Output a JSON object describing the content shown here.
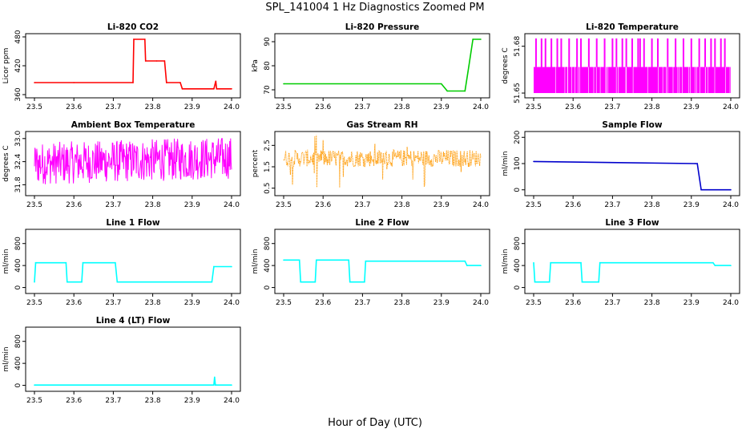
{
  "figure": {
    "title": "SPL_141004  1 Hz Diagnostics Zoomed PM",
    "xlabel": "Hour of Day (UTC)"
  },
  "chart_data": [
    {
      "type": "line",
      "title": "Li-820 CO2",
      "ylabel": "Licor ppm",
      "color": "#ff0000",
      "xlim": [
        23.5,
        24.0
      ],
      "ylim": [
        360,
        480
      ],
      "xticks": [
        "23.5",
        "23.6",
        "23.7",
        "23.8",
        "23.9",
        "24.0"
      ],
      "yticks": [
        "360",
        "420",
        "480"
      ],
      "x": [
        23.5,
        23.6,
        23.75,
        23.752,
        23.78,
        23.782,
        23.81,
        23.83,
        23.835,
        23.87,
        23.875,
        23.955,
        23.96,
        23.962,
        23.965,
        23.97,
        24.0
      ],
      "y": [
        385,
        385,
        385,
        475,
        475,
        430,
        430,
        430,
        385,
        385,
        372,
        372,
        388,
        372,
        372,
        372,
        372
      ]
    },
    {
      "type": "line",
      "title": "Li-820 Pressure",
      "ylabel": "kPa",
      "color": "#00cc00",
      "xlim": [
        23.5,
        24.0
      ],
      "ylim": [
        68,
        92
      ],
      "xticks": [
        "23.5",
        "23.6",
        "23.7",
        "23.8",
        "23.9",
        "24.0"
      ],
      "yticks": [
        "70",
        "80",
        "90"
      ],
      "x": [
        23.5,
        23.9,
        23.915,
        23.96,
        23.97,
        23.98,
        24.0
      ],
      "y": [
        72.5,
        72.5,
        69.5,
        69.5,
        80,
        91,
        91
      ]
    },
    {
      "type": "line",
      "title": "Li-820 Temperature",
      "ylabel": "degrees C",
      "color": "#ff00ff",
      "xlim": [
        23.5,
        24.0
      ],
      "ylim": [
        51.649,
        51.686
      ],
      "xticks": [
        "23.5",
        "23.6",
        "23.7",
        "23.8",
        "23.9",
        "24.0"
      ],
      "yticks": [
        "51.65",
        "51.68"
      ],
      "ytick_values": [
        51.65,
        51.68
      ],
      "band_low": 51.65,
      "band_high": 51.6667,
      "spike_high": 51.685,
      "spikes_x": [
        23.506,
        23.52,
        23.53,
        23.545,
        23.56,
        23.57,
        23.59,
        23.61,
        23.62,
        23.64,
        23.66,
        23.68,
        23.7,
        23.71,
        23.725,
        23.735,
        23.75,
        23.765,
        23.77,
        23.78,
        23.8,
        23.815,
        23.84,
        23.86,
        23.88,
        23.9,
        23.92,
        23.935,
        23.95,
        23.96,
        23.975,
        23.985
      ]
    },
    {
      "type": "line",
      "title": "Ambient Box Temperature",
      "ylabel": "degrees C",
      "color": "#ff00ff",
      "xlim": [
        23.5,
        24.0
      ],
      "ylim": [
        31.6,
        33.1
      ],
      "xticks": [
        "23.5",
        "23.6",
        "23.7",
        "23.8",
        "23.9",
        "24.0"
      ],
      "yticks": [
        "31.8",
        "32.4",
        "33.0"
      ],
      "ytick_values": [
        31.8,
        32.4,
        33.0
      ],
      "trend_start": [
        31.8,
        32.9
      ],
      "trend_end": [
        31.95,
        33.05
      ]
    },
    {
      "type": "line",
      "title": "Gas Stream RH",
      "ylabel": "percent",
      "color": "#ff9900",
      "xlim": [
        23.5,
        24.0
      ],
      "ylim": [
        0.3,
        3.0
      ],
      "xticks": [
        "23.5",
        "23.6",
        "23.7",
        "23.8",
        "23.9",
        "24.0"
      ],
      "yticks": [
        "0.5",
        "1.5",
        "2.5"
      ],
      "ytick_values": [
        0.5,
        1.5,
        2.5
      ],
      "band": [
        1.5,
        2.3
      ]
    },
    {
      "type": "line",
      "title": "Sample Flow",
      "ylabel": "ml/min",
      "color": "#0000cc",
      "xlim": [
        23.5,
        24.0
      ],
      "ylim": [
        -10,
        210
      ],
      "xticks": [
        "23.5",
        "23.6",
        "23.7",
        "23.8",
        "23.9",
        "24.0"
      ],
      "yticks": [
        "0",
        "100",
        "200"
      ],
      "x": [
        23.5,
        23.91,
        23.915,
        23.925,
        24.0
      ],
      "y": [
        108,
        100,
        100,
        0,
        0
      ]
    },
    {
      "type": "line",
      "title": "Line 1 Flow",
      "ylabel": "ml/min",
      "color": "#00ffff",
      "xlim": [
        23.5,
        24.0
      ],
      "ylim": [
        -50,
        1000
      ],
      "xticks": [
        "23.5",
        "23.6",
        "23.7",
        "23.8",
        "23.9",
        "24.0"
      ],
      "yticks": [
        "0",
        "400",
        "800"
      ],
      "x": [
        23.5,
        23.503,
        23.58,
        23.583,
        23.62,
        23.623,
        23.705,
        23.71,
        23.95,
        23.955,
        24.0
      ],
      "y": [
        100,
        450,
        450,
        100,
        100,
        450,
        450,
        100,
        100,
        380,
        380
      ]
    },
    {
      "type": "line",
      "title": "Line 2 Flow",
      "ylabel": "ml/min",
      "color": "#00ffff",
      "xlim": [
        23.5,
        24.0
      ],
      "ylim": [
        -50,
        1000
      ],
      "xticks": [
        "23.5",
        "23.6",
        "23.7",
        "23.8",
        "23.9",
        "24.0"
      ],
      "yticks": [
        "0",
        "400",
        "800"
      ],
      "x": [
        23.5,
        23.54,
        23.543,
        23.58,
        23.583,
        23.665,
        23.668,
        23.705,
        23.708,
        23.96,
        23.965,
        24.0
      ],
      "y": [
        500,
        500,
        100,
        100,
        500,
        500,
        100,
        100,
        480,
        480,
        400,
        400
      ]
    },
    {
      "type": "line",
      "title": "Line 3 Flow",
      "ylabel": "ml/min",
      "color": "#00ffff",
      "xlim": [
        23.5,
        24.0
      ],
      "ylim": [
        -50,
        1000
      ],
      "xticks": [
        "23.5",
        "23.6",
        "23.7",
        "23.8",
        "23.9",
        "24.0"
      ],
      "yticks": [
        "0",
        "400",
        "800"
      ],
      "x": [
        23.5,
        23.503,
        23.54,
        23.543,
        23.62,
        23.623,
        23.665,
        23.668,
        23.955,
        23.96,
        24.0
      ],
      "y": [
        450,
        100,
        100,
        450,
        450,
        100,
        100,
        450,
        450,
        400,
        400
      ]
    },
    {
      "type": "line",
      "title": "Line 4 (LT) Flow",
      "ylabel": "ml/min",
      "color": "#00ffff",
      "xlim": [
        23.5,
        24.0
      ],
      "ylim": [
        -50,
        1000
      ],
      "xticks": [
        "23.5",
        "23.6",
        "23.7",
        "23.8",
        "23.9",
        "24.0"
      ],
      "yticks": [
        "0",
        "400",
        "800"
      ],
      "x": [
        23.5,
        23.955,
        23.957,
        23.959,
        23.961,
        24.0
      ],
      "y": [
        5,
        5,
        150,
        5,
        5,
        5
      ]
    }
  ]
}
